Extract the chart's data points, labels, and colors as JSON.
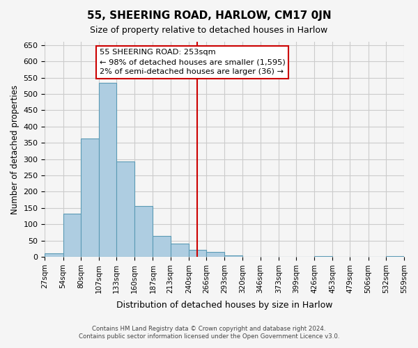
{
  "title": "55, SHEERING ROAD, HARLOW, CM17 0JN",
  "subtitle": "Size of property relative to detached houses in Harlow",
  "xlabel": "Distribution of detached houses by size in Harlow",
  "ylabel": "Number of detached properties",
  "bar_values": [
    10,
    133,
    363,
    535,
    293,
    157,
    65,
    40,
    22,
    15,
    5,
    0,
    0,
    0,
    0,
    2,
    0,
    0,
    0,
    2
  ],
  "bin_edges": [
    27,
    54,
    80,
    107,
    133,
    160,
    187,
    213,
    240,
    266,
    293,
    320,
    346,
    373,
    399,
    426,
    453,
    479,
    506,
    532,
    559
  ],
  "tick_labels": [
    "27sqm",
    "54sqm",
    "80sqm",
    "107sqm",
    "133sqm",
    "160sqm",
    "187sqm",
    "213sqm",
    "240sqm",
    "266sqm",
    "293sqm",
    "320sqm",
    "346sqm",
    "373sqm",
    "399sqm",
    "426sqm",
    "453sqm",
    "479sqm",
    "506sqm",
    "532sqm",
    "559sqm"
  ],
  "bar_color": "#aecde1",
  "bar_edge_color": "#5b9ab5",
  "vline_x": 253,
  "vline_color": "#cc0000",
  "annotation_line1": "55 SHEERING ROAD: 253sqm",
  "annotation_line2": "← 98% of detached houses are smaller (1,595)",
  "annotation_line3": "2% of semi-detached houses are larger (36) →",
  "ylim": [
    0,
    660
  ],
  "yticks": [
    0,
    50,
    100,
    150,
    200,
    250,
    300,
    350,
    400,
    450,
    500,
    550,
    600,
    650
  ],
  "footer_line1": "Contains HM Land Registry data © Crown copyright and database right 2024.",
  "footer_line2": "Contains public sector information licensed under the Open Government Licence v3.0.",
  "background_color": "#f5f5f5",
  "grid_color": "#cccccc"
}
